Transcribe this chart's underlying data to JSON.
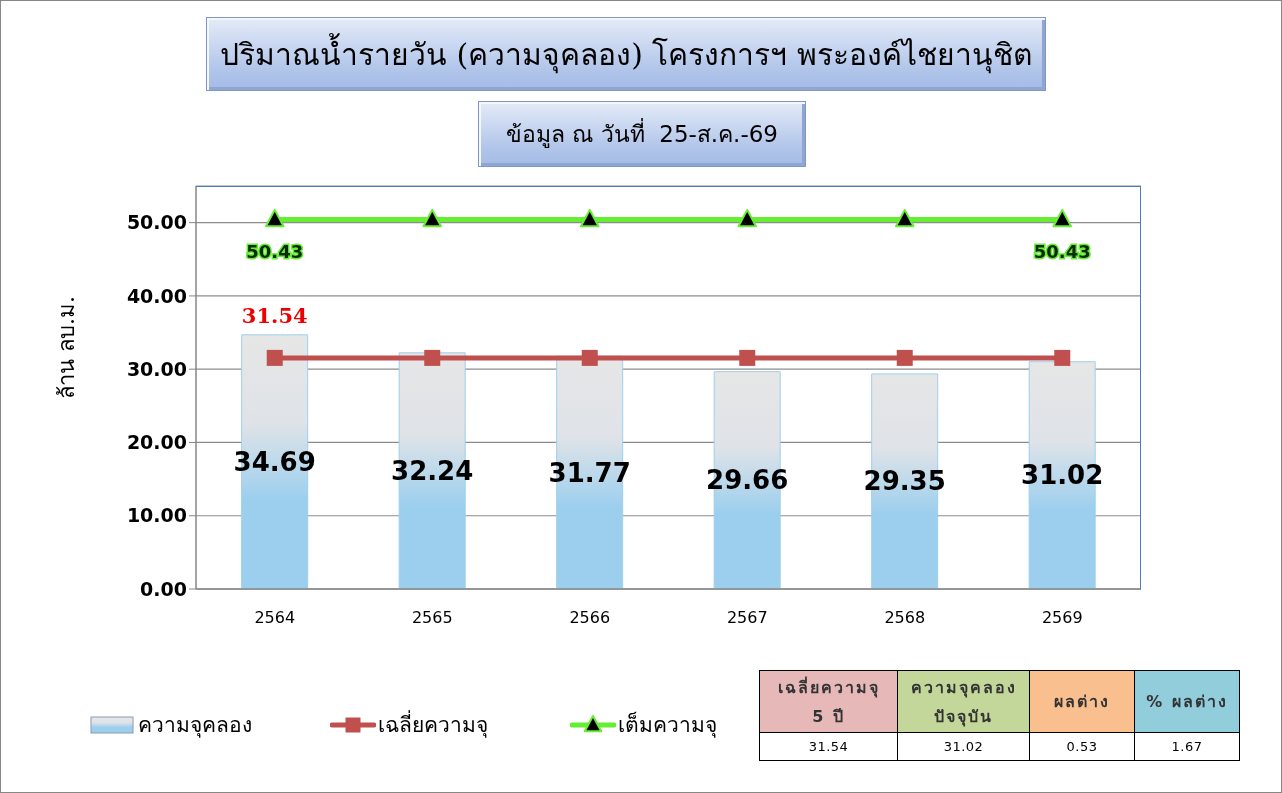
{
  "chart_data": [
    {
      "type": "bar",
      "title": "ปริมาณน้ำรายวัน (ความจุคลอง) โครงการฯ พระองค์ไชยานุชิต",
      "subtitle": "ข้อมูล ณ วันที่  25-ส.ค.-69",
      "ylabel": "ล้าน ลบ.ม.",
      "categories": [
        "2564",
        "2565",
        "2566",
        "2567",
        "2568",
        "2569"
      ],
      "series": [
        {
          "name": "ความจุคลอง",
          "type": "bar",
          "color": "#9ccfee",
          "values": [
            34.69,
            32.24,
            31.77,
            29.66,
            29.35,
            31.02
          ],
          "value_labels": [
            "34.69",
            "32.24",
            "31.77",
            "29.66",
            "29.35",
            "31.02"
          ]
        },
        {
          "name": "เฉลี่ยความจุ",
          "type": "line",
          "color": "#c0504d",
          "marker": "square",
          "values": [
            31.54,
            31.54,
            31.54,
            31.54,
            31.54,
            31.54
          ],
          "value_labels": [
            "31.54",
            null,
            null,
            null,
            null,
            null
          ]
        },
        {
          "name": "เต็มความจุ",
          "type": "line",
          "color": "#66ee33",
          "marker": "triangle",
          "values": [
            50.43,
            50.43,
            50.43,
            50.43,
            50.43,
            50.43
          ],
          "value_labels": [
            "50.43",
            null,
            null,
            null,
            null,
            "50.43"
          ]
        }
      ],
      "ylim": [
        0,
        55
      ],
      "yticks": [
        {
          "value": 0,
          "label": "0.00"
        },
        {
          "value": 10,
          "label": "10.00"
        },
        {
          "value": 20,
          "label": "20.00"
        },
        {
          "value": 30,
          "label": "30.00"
        },
        {
          "value": 40,
          "label": "40.00"
        },
        {
          "value": 50,
          "label": "50.00"
        }
      ],
      "grid": "y",
      "legend": "bottom left"
    },
    {
      "type": "other",
      "categories": [
        "เฉลี่ยความจุ 5 ปี",
        "ความจุคลอง ปัจจุบัน",
        "ผลต่าง",
        "% ผลต่าง"
      ],
      "values": [
        31.54,
        31.02,
        0.53,
        1.67
      ],
      "data_labels": true
    }
  ]
}
